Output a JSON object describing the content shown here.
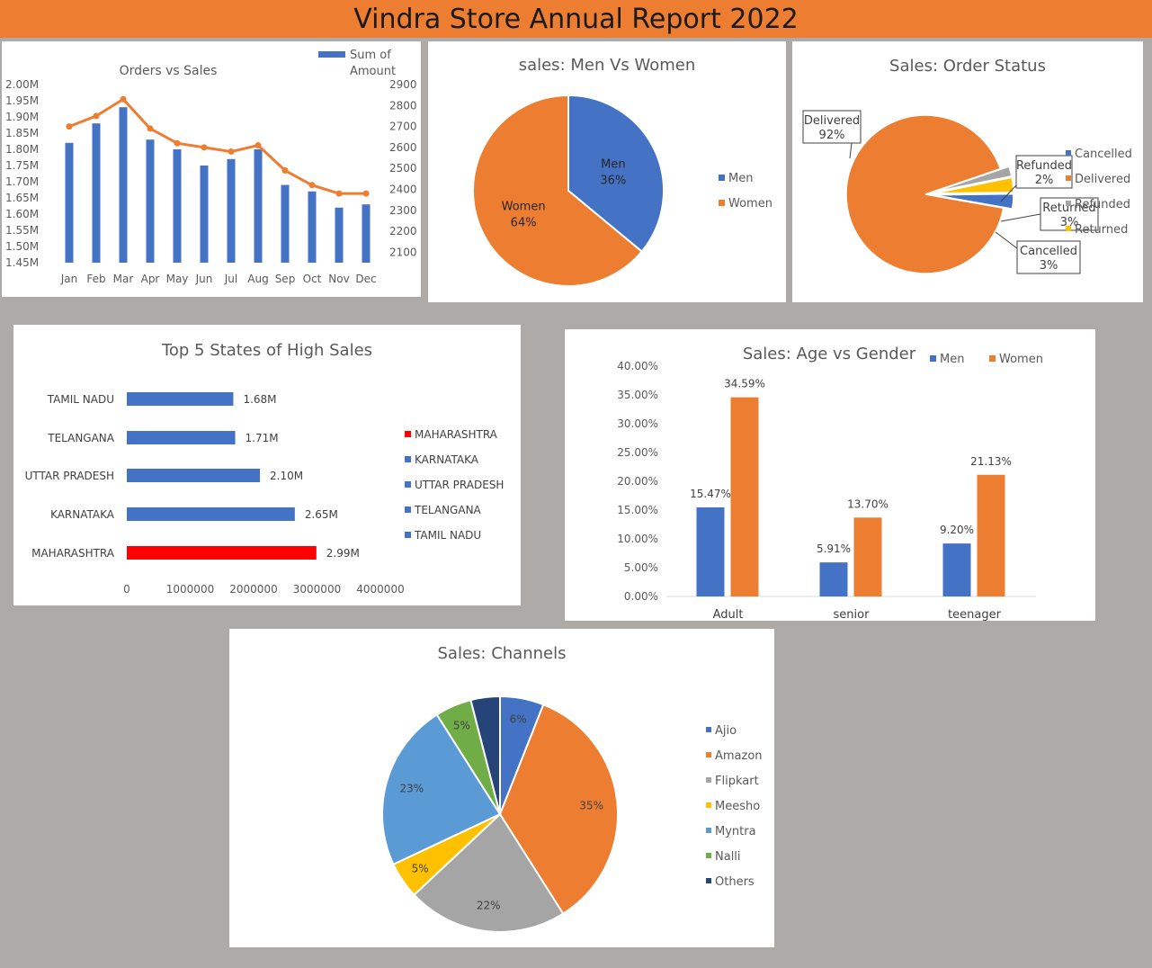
{
  "report": {
    "title": "Vindra Store Annual Report 2022"
  },
  "colors": {
    "blue": "#4472c4",
    "orange": "#ed7d31",
    "gray": "#a5a5a5",
    "yellow": "#ffc000",
    "lightblue": "#5b9bd5",
    "green": "#70ad47",
    "navy": "#264478",
    "red": "#ff0000"
  },
  "chart_data": [
    {
      "id": "orders_vs_sales",
      "type": "bar+line",
      "title": "Orders vs Sales",
      "legend": [
        "Sum of",
        "Amount"
      ],
      "categories": [
        "Jan",
        "Feb",
        "Mar",
        "Apr",
        "May",
        "Jun",
        "Jul",
        "Aug",
        "Sep",
        "Oct",
        "Nov",
        "Dec"
      ],
      "bar_series": {
        "name": "Sum of Amount",
        "values": [
          1.82,
          1.88,
          1.93,
          1.83,
          1.8,
          1.75,
          1.77,
          1.8,
          1.69,
          1.67,
          1.62,
          1.63
        ]
      },
      "line_series": {
        "name": "Orders",
        "values": [
          2700,
          2750,
          2830,
          2690,
          2620,
          2600,
          2580,
          2610,
          2490,
          2420,
          2380,
          2380
        ]
      },
      "left_ticks": [
        "2.00M",
        "1.95M",
        "1.90M",
        "1.85M",
        "1.80M",
        "1.75M",
        "1.70M",
        "1.65M",
        "1.60M",
        "1.55M",
        "1.50M",
        "1.45M"
      ],
      "right_ticks": [
        "2900",
        "2800",
        "2700",
        "2600",
        "2500",
        "2400",
        "2300",
        "2200",
        "2100"
      ],
      "ylim_left": [
        1.45,
        2.0
      ],
      "ylim_right": [
        2050,
        2900
      ]
    },
    {
      "id": "men_vs_women",
      "type": "pie",
      "title": "sales: Men Vs Women",
      "slices": [
        {
          "name": "Men",
          "value": 36,
          "label": "36%",
          "color": "#4472c4"
        },
        {
          "name": "Women",
          "value": 64,
          "label": "64%",
          "color": "#ed7d31"
        }
      ],
      "legend": [
        "Men",
        "Women"
      ]
    },
    {
      "id": "order_status",
      "type": "pie",
      "title": "Sales: Order Status",
      "slices": [
        {
          "name": "Delivered",
          "value": 92,
          "label": "92%",
          "color": "#ed7d31"
        },
        {
          "name": "Refunded",
          "value": 2,
          "label": "2%",
          "color": "#a5a5a5"
        },
        {
          "name": "Returned",
          "value": 3,
          "label": "3%",
          "color": "#ffc000"
        },
        {
          "name": "Cancelled",
          "value": 3,
          "label": "3%",
          "color": "#4472c4"
        }
      ],
      "legend": [
        "Cancelled",
        "Delivered",
        "Refunded",
        "Returned"
      ]
    },
    {
      "id": "top_states",
      "type": "bar",
      "orientation": "horizontal",
      "title": "Top 5 States of High Sales",
      "categories": [
        "TAMIL NADU",
        "TELANGANA",
        "UTTAR PRADESH",
        "KARNATAKA",
        "MAHARASHTRA"
      ],
      "values": [
        1680000,
        1710000,
        2100000,
        2650000,
        2990000
      ],
      "labels": [
        "1.68M",
        "1.71M",
        "2.10M",
        "2.65M",
        "2.99M"
      ],
      "colors": [
        "#4472c4",
        "#4472c4",
        "#4472c4",
        "#4472c4",
        "#ff0000"
      ],
      "x_ticks": [
        "0",
        "1000000",
        "2000000",
        "3000000",
        "4000000"
      ],
      "xlim": [
        0,
        4000000
      ],
      "legend": [
        "MAHARASHTRA",
        "KARNATAKA",
        "UTTAR PRADESH",
        "TELANGANA",
        "TAMIL NADU"
      ],
      "legend_colors": [
        "#ff0000",
        "#4472c4",
        "#4472c4",
        "#4472c4",
        "#4472c4"
      ]
    },
    {
      "id": "age_vs_gender",
      "type": "bar",
      "title": "Sales: Age vs Gender",
      "categories": [
        "Adult",
        "senior",
        "teenager"
      ],
      "series": [
        {
          "name": "Men",
          "values": [
            15.47,
            5.91,
            9.2
          ],
          "labels": [
            "15.47%",
            "5.91%",
            "9.20%"
          ],
          "color": "#4472c4"
        },
        {
          "name": "Women",
          "values": [
            34.59,
            13.7,
            21.13
          ],
          "labels": [
            "34.59%",
            "13.70%",
            "21.13%"
          ],
          "color": "#ed7d31"
        }
      ],
      "y_ticks": [
        "40.00%",
        "35.00%",
        "30.00%",
        "25.00%",
        "20.00%",
        "15.00%",
        "10.00%",
        "5.00%",
        "0.00%"
      ],
      "ylim": [
        0,
        40
      ]
    },
    {
      "id": "channels",
      "type": "pie",
      "title": "Sales: Channels",
      "slices": [
        {
          "name": "Ajio",
          "value": 6,
          "label": "6%",
          "color": "#4472c4"
        },
        {
          "name": "Amazon",
          "value": 35,
          "label": "35%",
          "color": "#ed7d31"
        },
        {
          "name": "Flipkart",
          "value": 22,
          "label": "22%",
          "color": "#a5a5a5"
        },
        {
          "name": "Meesho",
          "value": 5,
          "label": "5%",
          "color": "#ffc000"
        },
        {
          "name": "Myntra",
          "value": 23,
          "label": "23%",
          "color": "#5b9bd5"
        },
        {
          "name": "Nalli",
          "value": 5,
          "label": "5%",
          "color": "#70ad47"
        },
        {
          "name": "Others",
          "value": 4,
          "label": "",
          "color": "#264478"
        }
      ],
      "legend": [
        "Ajio",
        "Amazon",
        "Flipkart",
        "Meesho",
        "Myntra",
        "Nalli",
        "Others"
      ]
    }
  ]
}
